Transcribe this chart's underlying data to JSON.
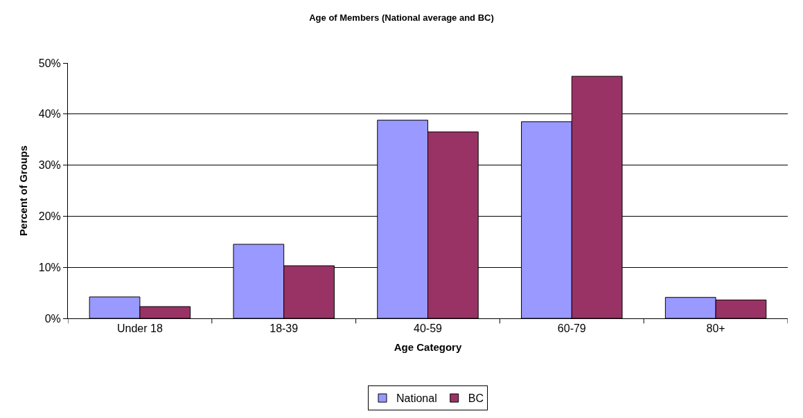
{
  "chart_data": {
    "type": "bar",
    "title": "Age of Members (National average and BC)",
    "xlabel": "Age Category",
    "ylabel": "Percent of Groups",
    "categories": [
      "Under 18",
      "18-39",
      "40-59",
      "60-79",
      "80+"
    ],
    "series": [
      {
        "name": "National",
        "color": "#9999ff",
        "values": [
          4.2,
          14.5,
          38.8,
          38.5,
          4.1
        ]
      },
      {
        "name": "BC",
        "color": "#993366",
        "values": [
          2.3,
          10.3,
          36.5,
          47.4,
          3.6
        ]
      }
    ],
    "ylim": [
      0,
      50
    ],
    "yticks": [
      {
        "value": 0,
        "label": "0%"
      },
      {
        "value": 10,
        "label": "10%"
      },
      {
        "value": 20,
        "label": "20%"
      },
      {
        "value": 30,
        "label": "30%"
      },
      {
        "value": 40,
        "label": "40%"
      },
      {
        "value": 50,
        "label": "50%"
      }
    ],
    "grid": "y",
    "legend": "bottom"
  }
}
